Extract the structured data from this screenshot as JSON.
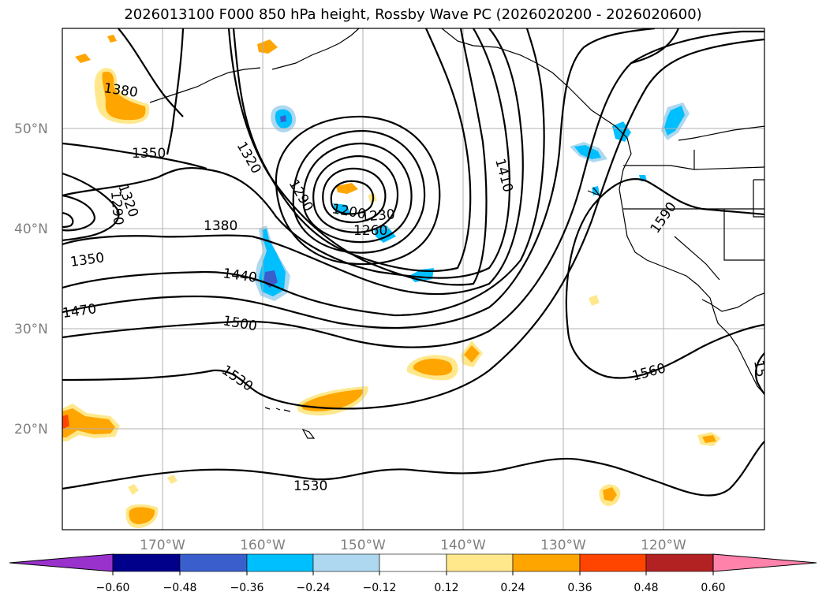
{
  "title": "2026013100 F000 850 hPa height, Rossby Wave PC (2026020200 - 2026020600)",
  "lat_labels": [
    "50°N",
    "40°N",
    "30°N",
    "20°N"
  ],
  "lon_labels": [
    "170°W",
    "160°W",
    "150°W",
    "140°W",
    "130°W",
    "120°W"
  ],
  "contour_labels": {
    "c1380a": "1380",
    "c1350a": "1350",
    "c1320a": "1320",
    "c1290a": "1290",
    "c1320b": "1320",
    "c1290b": "1290",
    "c1200": "1200",
    "c1230": "1230",
    "c1260": "1260",
    "c1380b": "1380",
    "c1350b": "1350",
    "c1440": "1440",
    "c1470": "1470",
    "c1500": "1500",
    "c1530a": "1530",
    "c1410": "1410",
    "c1590": "1590",
    "c1560": "1560",
    "c1530b": "1530",
    "c15edge": "15"
  },
  "colorbar": {
    "ticks": [
      "−0.60",
      "−0.48",
      "−0.36",
      "−0.24",
      "−0.12",
      "0.12",
      "0.24",
      "0.36",
      "0.48",
      "0.60"
    ],
    "colors": [
      "#9932cc",
      "#00008b",
      "#3a5fcd",
      "#00bfff",
      "#add8f0",
      "#ffffff",
      "#ffe88c",
      "#ffa500",
      "#ff4500",
      "#b22222",
      "#ff82ab"
    ]
  },
  "shade_colors": {
    "orange": "#ffa500",
    "yellow": "#ffe88c",
    "red": "#ff4500",
    "cyan": "#00bfff",
    "lightblue": "#add8f0",
    "blue": "#3a5fcd"
  }
}
